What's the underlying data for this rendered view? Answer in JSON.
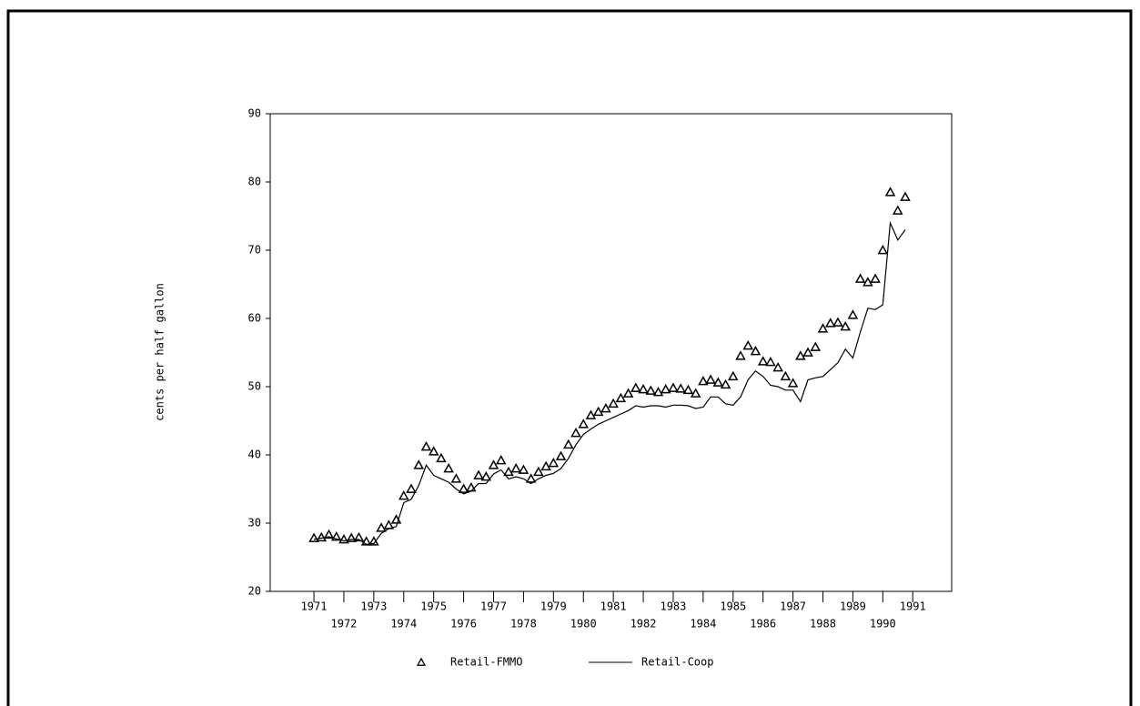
{
  "chart_data": {
    "type": "line",
    "y_label": "cents per half gallon",
    "x": [
      1971,
      1971.25,
      1971.5,
      1971.75,
      1972,
      1972.25,
      1972.5,
      1972.75,
      1973,
      1973.25,
      1973.5,
      1973.75,
      1974,
      1974.25,
      1974.5,
      1974.75,
      1975,
      1975.25,
      1975.5,
      1975.75,
      1976,
      1976.25,
      1976.5,
      1976.75,
      1977,
      1977.25,
      1977.5,
      1977.75,
      1978,
      1978.25,
      1978.5,
      1978.75,
      1979,
      1979.25,
      1979.5,
      1979.75,
      1980,
      1980.25,
      1980.5,
      1980.75,
      1981,
      1981.25,
      1981.5,
      1981.75,
      1982,
      1982.25,
      1982.5,
      1982.75,
      1983,
      1983.25,
      1983.5,
      1983.75,
      1984,
      1984.25,
      1984.5,
      1984.75,
      1985,
      1985.25,
      1985.5,
      1985.75,
      1986,
      1986.25,
      1986.5,
      1986.75,
      1987,
      1987.25,
      1987.5,
      1987.75,
      1988,
      1988.25,
      1988.5,
      1988.75,
      1989,
      1989.25,
      1989.5,
      1989.75,
      1990,
      1990.25,
      1990.5,
      1990.75
    ],
    "series": [
      {
        "name": "Retail-FMMO",
        "color": "#000000",
        "style": "markers",
        "values": [
          27.8,
          27.9,
          28.3,
          28,
          27.6,
          27.8,
          27.9,
          27.3,
          27.3,
          29.3,
          29.7,
          30.5,
          34,
          35,
          38.5,
          41.2,
          40.5,
          39.5,
          38,
          36.5,
          35,
          35.2,
          37,
          36.8,
          38.5,
          39.2,
          37.5,
          38,
          37.8,
          36.5,
          37.5,
          38.3,
          38.8,
          39.8,
          41.5,
          43.2,
          44.5,
          45.8,
          46.3,
          46.8,
          47.5,
          48.3,
          49,
          49.8,
          49.6,
          49.4,
          49.2,
          49.6,
          49.8,
          49.7,
          49.5,
          49,
          50.8,
          51,
          50.6,
          50.3,
          51.5,
          54.5,
          56,
          55.2,
          53.7,
          53.6,
          52.8,
          51.5,
          50.5,
          54.5,
          55,
          55.8,
          58.5,
          59.3,
          59.4,
          58.8,
          60.5,
          65.8,
          65.3,
          65.8,
          70,
          78.5,
          75.8,
          77.8
        ]
      },
      {
        "name": "Retail-Coop",
        "color": "#000000",
        "style": "line",
        "values": [
          27.6,
          27.8,
          28,
          27.7,
          27.4,
          27.6,
          27.6,
          26.9,
          27,
          28.5,
          29.2,
          29.5,
          33,
          33.5,
          35.5,
          38.5,
          37,
          36.5,
          36,
          35,
          34.3,
          34.7,
          35.8,
          35.8,
          37.2,
          37.8,
          36.5,
          36.8,
          36.5,
          35.8,
          36.5,
          37,
          37.3,
          38,
          39.5,
          41.5,
          43,
          43.8,
          44.5,
          45,
          45.5,
          46,
          46.5,
          47.2,
          47,
          47.2,
          47.2,
          47,
          47.3,
          47.3,
          47.2,
          46.8,
          47,
          48.5,
          48.5,
          47.5,
          47.3,
          48.5,
          51,
          52.3,
          51.5,
          50.2,
          50,
          49.5,
          49.5,
          47.8,
          51,
          51.3,
          51.5,
          52.5,
          53.5,
          55.5,
          54.2,
          58,
          61.5,
          61.3,
          62,
          74,
          71.5,
          73
        ]
      }
    ],
    "xlim": [
      1969.54,
      1992.3
    ],
    "xticks": [
      1971,
      1972,
      1973,
      1974,
      1975,
      1976,
      1977,
      1978,
      1979,
      1980,
      1981,
      1982,
      1983,
      1984,
      1985,
      1986,
      1987,
      1988,
      1989,
      1990,
      1991
    ],
    "ylim": [
      20,
      90
    ],
    "yticks": [
      20,
      30,
      40,
      50,
      60,
      70,
      80,
      90
    ],
    "grid": false
  }
}
